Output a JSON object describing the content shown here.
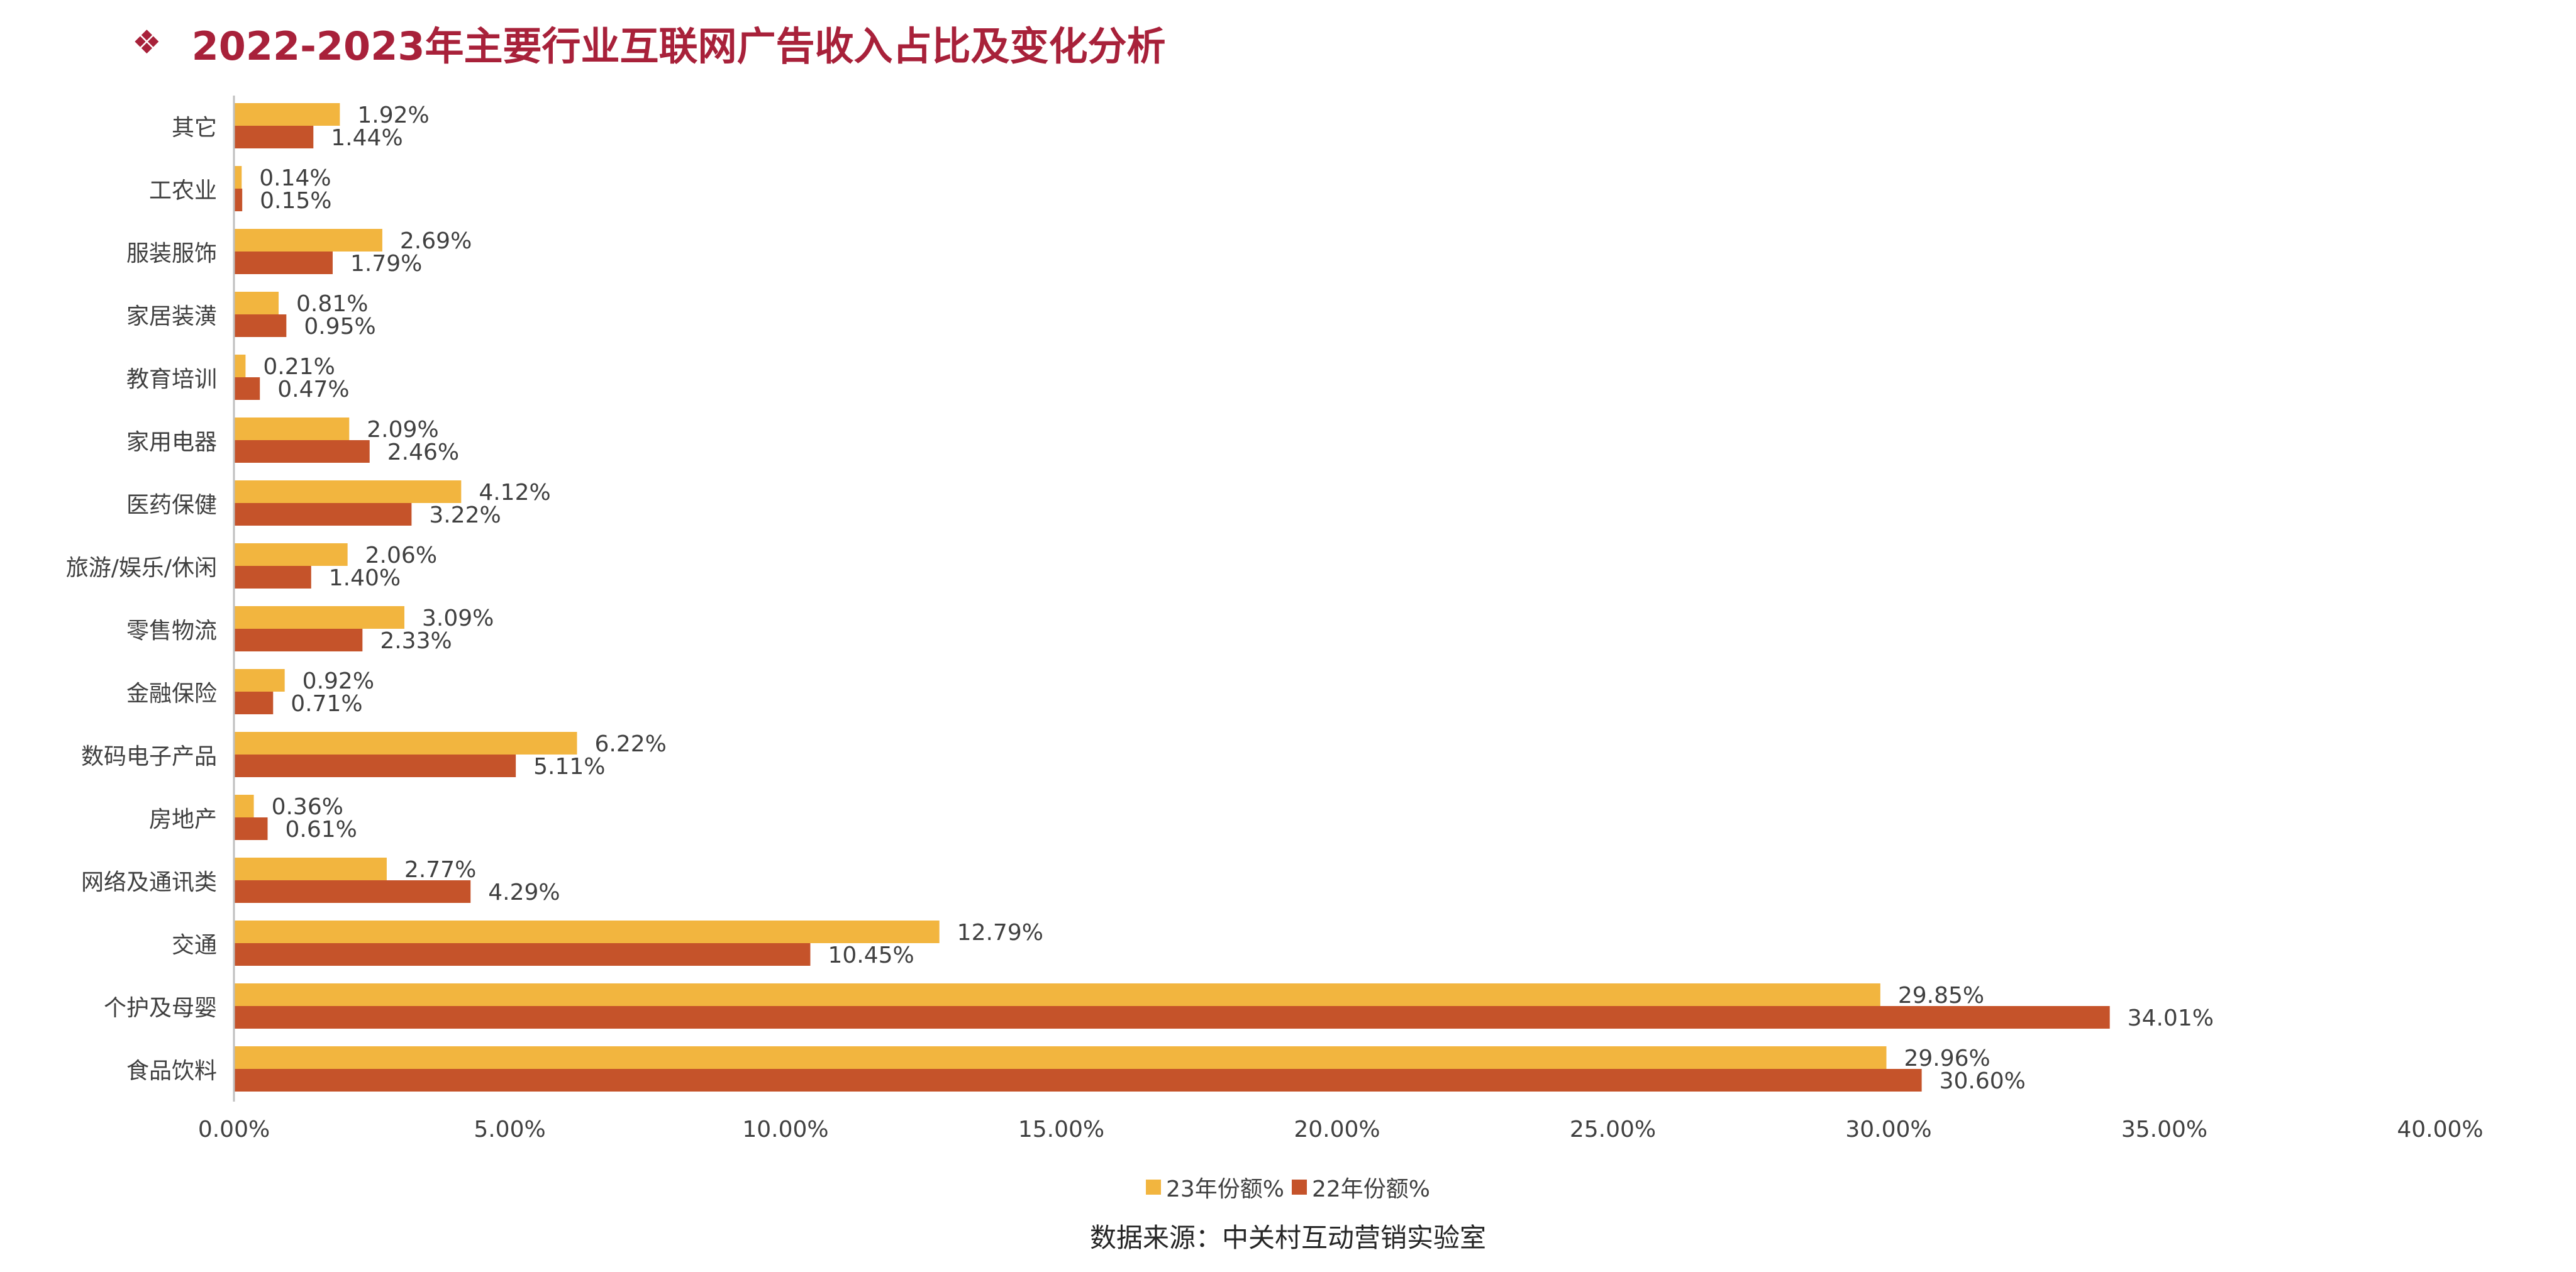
{
  "header": {
    "bullet": "❖",
    "title": "2022-2023年主要行业互联网广告收入占比及变化分析"
  },
  "source_note": "数据来源：中关村互动营销实验室",
  "colors": {
    "series23": "#F2B53F",
    "series22": "#C5532A",
    "axis": "#BFBFBF",
    "title": "#A8213A"
  },
  "chart_data": {
    "type": "bar",
    "orientation": "horizontal",
    "categories": [
      "其它",
      "工农业",
      "服装服饰",
      "家居装潢",
      "教育培训",
      "家用电器",
      "医药保健",
      "旅游/娱乐/休闲",
      "零售物流",
      "金融保险",
      "数码电子产品",
      "房地产",
      "网络及通讯类",
      "交通",
      "个护及母婴",
      "食品饮料"
    ],
    "series": [
      {
        "name": "23年份额%",
        "values": [
          1.92,
          0.14,
          2.69,
          0.81,
          0.21,
          2.09,
          4.12,
          2.06,
          3.09,
          0.92,
          6.22,
          0.36,
          2.77,
          12.79,
          29.85,
          29.96
        ],
        "labels": [
          "1.92%",
          "0.14%",
          "2.69%",
          "0.81%",
          "0.21%",
          "2.09%",
          "4.12%",
          "2.06%",
          "3.09%",
          "0.92%",
          "6.22%",
          "0.36%",
          "2.77%",
          "12.79%",
          "29.85%",
          "29.96%"
        ]
      },
      {
        "name": "22年份额%",
        "values": [
          1.44,
          0.15,
          1.79,
          0.95,
          0.47,
          2.46,
          3.22,
          1.4,
          2.33,
          0.71,
          5.11,
          0.61,
          4.29,
          10.45,
          34.01,
          30.6
        ],
        "labels": [
          "1.44%",
          "0.15%",
          "1.79%",
          "0.95%",
          "0.47%",
          "2.46%",
          "3.22%",
          "1.40%",
          "2.33%",
          "0.71%",
          "5.11%",
          "0.61%",
          "4.29%",
          "10.45%",
          "34.01%",
          "30.60%"
        ]
      }
    ],
    "xlim": [
      0,
      40
    ],
    "xticks": [
      0,
      5,
      10,
      15,
      20,
      25,
      30,
      35,
      40
    ],
    "xtick_labels": [
      "0.00%",
      "5.00%",
      "10.00%",
      "15.00%",
      "20.00%",
      "25.00%",
      "30.00%",
      "35.00%",
      "40.00%"
    ],
    "legend_position": "bottom",
    "grid": false
  }
}
